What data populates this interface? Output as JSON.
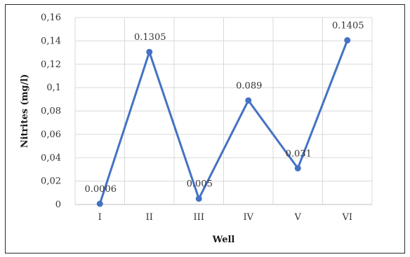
{
  "chart_data": {
    "type": "line",
    "categories": [
      "I",
      "II",
      "III",
      "IV",
      "V",
      "VI"
    ],
    "values": [
      0.0006,
      0.1305,
      0.005,
      0.089,
      0.031,
      0.1405
    ],
    "data_labels": [
      "0.0006",
      "0.1305",
      "0.005",
      "0.089",
      "0.031",
      "0.1405"
    ],
    "xlabel": "Well",
    "ylabel": "Nitrites (mg/l)",
    "ylim": [
      0,
      0.16
    ],
    "yticks": [
      0,
      0.02,
      0.04,
      0.06,
      0.08,
      0.1,
      0.12,
      0.14,
      0.16
    ],
    "ytick_labels": [
      "0",
      "0,02",
      "0,04",
      "0,06",
      "0,08",
      "0,1",
      "0,12",
      "0,14",
      "0,16"
    ],
    "grid": true,
    "color": "#4472c4"
  }
}
